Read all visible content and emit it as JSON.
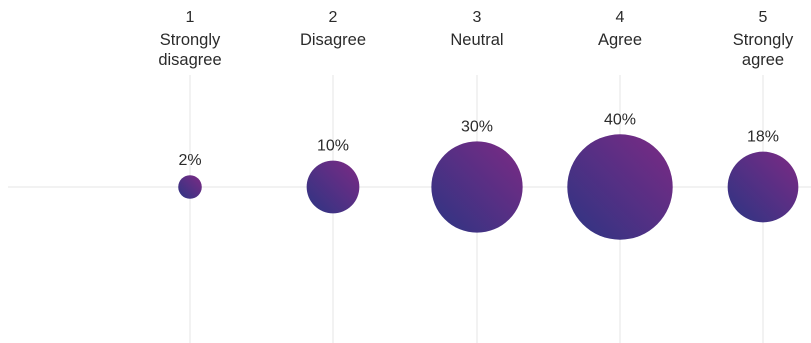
{
  "chart_data": {
    "type": "bubble",
    "categories": [
      {
        "number": "1",
        "label": [
          "Strongly",
          "disagree"
        ]
      },
      {
        "number": "2",
        "label": [
          "Disagree"
        ]
      },
      {
        "number": "3",
        "label": [
          "Neutral"
        ]
      },
      {
        "number": "4",
        "label": [
          "Agree"
        ]
      },
      {
        "number": "5",
        "label": [
          "Strongly",
          "agree"
        ]
      }
    ],
    "values": [
      2,
      10,
      30,
      40,
      18
    ],
    "value_labels": [
      "2%",
      "10%",
      "30%",
      "40%",
      "18%"
    ],
    "value_unit": "%",
    "grid": true,
    "legend": "none"
  },
  "colors": {
    "bubble_gradient_start": "#2c3583",
    "bubble_gradient_end": "#7d2a84",
    "grid": "#e6e6e6",
    "text": "#2b2b2b"
  }
}
